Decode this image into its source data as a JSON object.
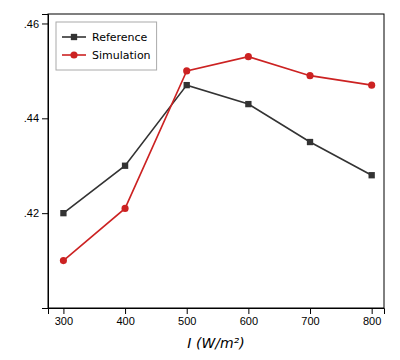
{
  "chart_data": {
    "type": "line",
    "x": [
      300,
      400,
      500,
      600,
      700,
      800
    ],
    "series": [
      {
        "name": "Reference",
        "color": "#333333",
        "marker": "square",
        "values": [
          0.42,
          0.43,
          0.447,
          0.443,
          0.435,
          0.428
        ]
      },
      {
        "name": "Simulation",
        "color": "#cc2222",
        "marker": "circle",
        "values": [
          0.41,
          0.421,
          0.45,
          0.453,
          0.449,
          0.447
        ]
      }
    ],
    "xlabel": "I (W/m²)",
    "xlim": [
      275,
      820
    ],
    "ylim": [
      0.4,
      0.462
    ],
    "xticks": [
      300,
      400,
      500,
      600,
      700,
      800
    ],
    "yticks": [
      {
        "value": 0.42,
        "label": ".42"
      },
      {
        "value": 0.44,
        "label": ".44"
      },
      {
        "value": 0.46,
        "label": ".46"
      }
    ],
    "legend": "upper left"
  }
}
